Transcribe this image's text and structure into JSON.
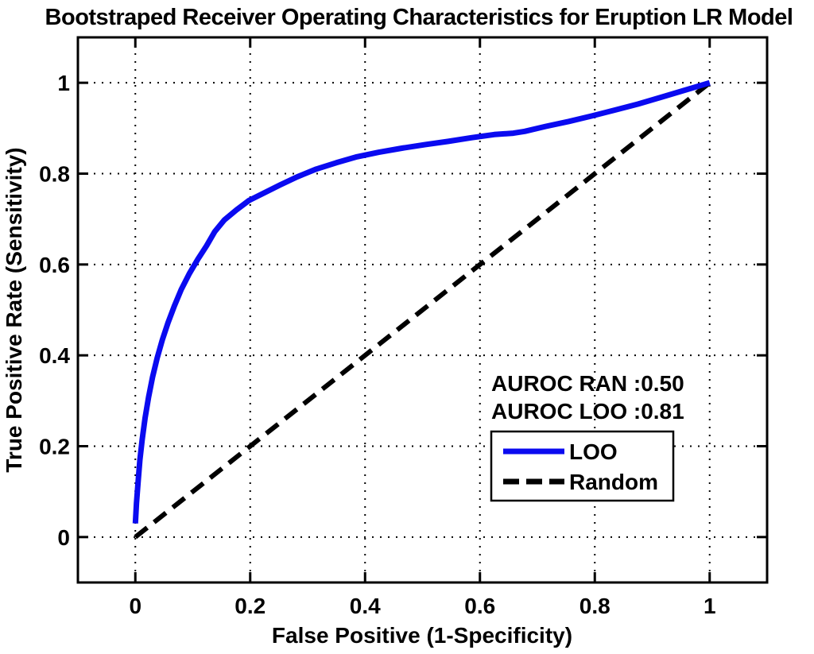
{
  "chart_data": {
    "type": "line",
    "title": "Bootstraped Receiver Operating Characteristics for Eruption LR Model",
    "xlabel": "False Positive (1-Specificity)",
    "ylabel": "True Positive Rate (Sensitivity)",
    "xlim": [
      -0.1,
      1.1
    ],
    "ylim": [
      -0.1,
      1.1
    ],
    "xticks": [
      0,
      0.2,
      0.4,
      0.6,
      0.8,
      1
    ],
    "yticks": [
      0,
      0.2,
      0.4,
      0.6,
      0.8,
      1
    ],
    "xtick_labels": [
      "0",
      "0.2",
      "0.4",
      "0.6",
      "0.8",
      "1"
    ],
    "ytick_labels": [
      "0",
      "0.2",
      "0.4",
      "0.6",
      "0.8",
      "1"
    ],
    "grid": "dotted",
    "legend_position": "lower-right-inside",
    "annotations": [
      "AUROC RAN :0.50",
      "AUROC LOO :0.81"
    ],
    "series": [
      {
        "name": "LOO",
        "style": "solid",
        "color": "#0a0af0",
        "points": [
          [
            0.0,
            0.03
          ],
          [
            0.002,
            0.075
          ],
          [
            0.005,
            0.125
          ],
          [
            0.008,
            0.17
          ],
          [
            0.012,
            0.215
          ],
          [
            0.017,
            0.262
          ],
          [
            0.023,
            0.308
          ],
          [
            0.03,
            0.352
          ],
          [
            0.038,
            0.394
          ],
          [
            0.047,
            0.434
          ],
          [
            0.057,
            0.472
          ],
          [
            0.068,
            0.509
          ],
          [
            0.08,
            0.545
          ],
          [
            0.094,
            0.58
          ],
          [
            0.109,
            0.612
          ],
          [
            0.124,
            0.641
          ],
          [
            0.138,
            0.672
          ],
          [
            0.155,
            0.698
          ],
          [
            0.176,
            0.72
          ],
          [
            0.198,
            0.741
          ],
          [
            0.225,
            0.758
          ],
          [
            0.252,
            0.775
          ],
          [
            0.282,
            0.793
          ],
          [
            0.315,
            0.81
          ],
          [
            0.35,
            0.824
          ],
          [
            0.386,
            0.837
          ],
          [
            0.424,
            0.847
          ],
          [
            0.464,
            0.856
          ],
          [
            0.505,
            0.864
          ],
          [
            0.545,
            0.871
          ],
          [
            0.585,
            0.879
          ],
          [
            0.625,
            0.886
          ],
          [
            0.658,
            0.889
          ],
          [
            0.678,
            0.893
          ],
          [
            0.715,
            0.904
          ],
          [
            0.755,
            0.915
          ],
          [
            0.795,
            0.927
          ],
          [
            0.835,
            0.94
          ],
          [
            0.875,
            0.953
          ],
          [
            0.915,
            0.968
          ],
          [
            0.955,
            0.983
          ],
          [
            1.0,
            1.0
          ]
        ]
      },
      {
        "name": "Random",
        "style": "dashed",
        "color": "#000000",
        "points": [
          [
            0.0,
            0.0
          ],
          [
            1.0,
            1.0
          ]
        ]
      }
    ]
  }
}
